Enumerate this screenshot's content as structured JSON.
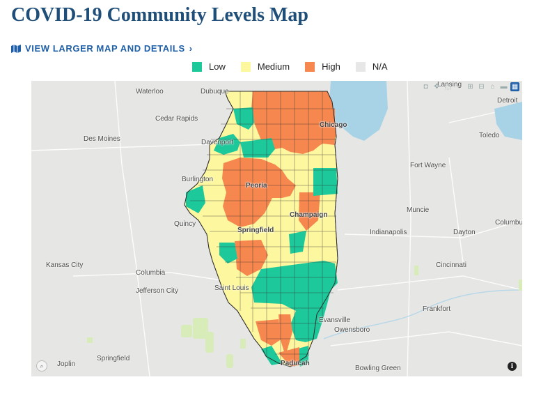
{
  "title": "COVID-19 Community Levels Map",
  "map_link": {
    "label": "VIEW LARGER MAP AND DETAILS",
    "icon": "map-icon",
    "chevron": "chevron-right-icon"
  },
  "colors": {
    "title": "#1f4e79",
    "link": "#1f5fa8",
    "low": "#1dc89a",
    "medium": "#fdf7a0",
    "high": "#f6874f",
    "na": "#e7e7e7"
  },
  "legend": [
    {
      "label": "Low",
      "color": "#1dc89a"
    },
    {
      "label": "Medium",
      "color": "#fdf7a0"
    },
    {
      "label": "High",
      "color": "#f6874f"
    },
    {
      "label": "N/A",
      "color": "#e7e7e7"
    }
  ],
  "cities": {
    "waterloo": "Waterloo",
    "dubuque": "Dubuque",
    "lansing": "Lansing",
    "detroit": "Detroit",
    "cedar_rapids": "Cedar Rapids",
    "chicago": "Chicago",
    "des_moines": "Des Moines",
    "davenport": "Davenport",
    "toledo": "Toledo",
    "fort_wayne": "Fort Wayne",
    "burlington": "Burlington",
    "peoria": "Peoria",
    "muncie": "Muncie",
    "champaign": "Champaign",
    "quincy": "Quincy",
    "springfield_il": "Springfield",
    "indianapolis": "Indianapolis",
    "dayton": "Dayton",
    "columbus": "Columbu",
    "kansas_city": "Kansas City",
    "columbia": "Columbia",
    "cincinnati": "Cincinnati",
    "jefferson_city": "Jefferson City",
    "saint_louis": "Saint Louis",
    "frankfort": "Frankfort",
    "evansville": "Evansville",
    "owensboro": "Owensboro",
    "joplin": "Joplin",
    "springfield_mo": "Springfield",
    "paducah": "Paducah",
    "bowling_green": "Bowling Green"
  },
  "map_controls": [
    "camera-icon",
    "pan-icon",
    "box-select-icon",
    "lasso-icon",
    "zoom-in-icon",
    "zoom-out-icon",
    "home-icon",
    "reset-icon",
    "plotly-logo-icon"
  ]
}
